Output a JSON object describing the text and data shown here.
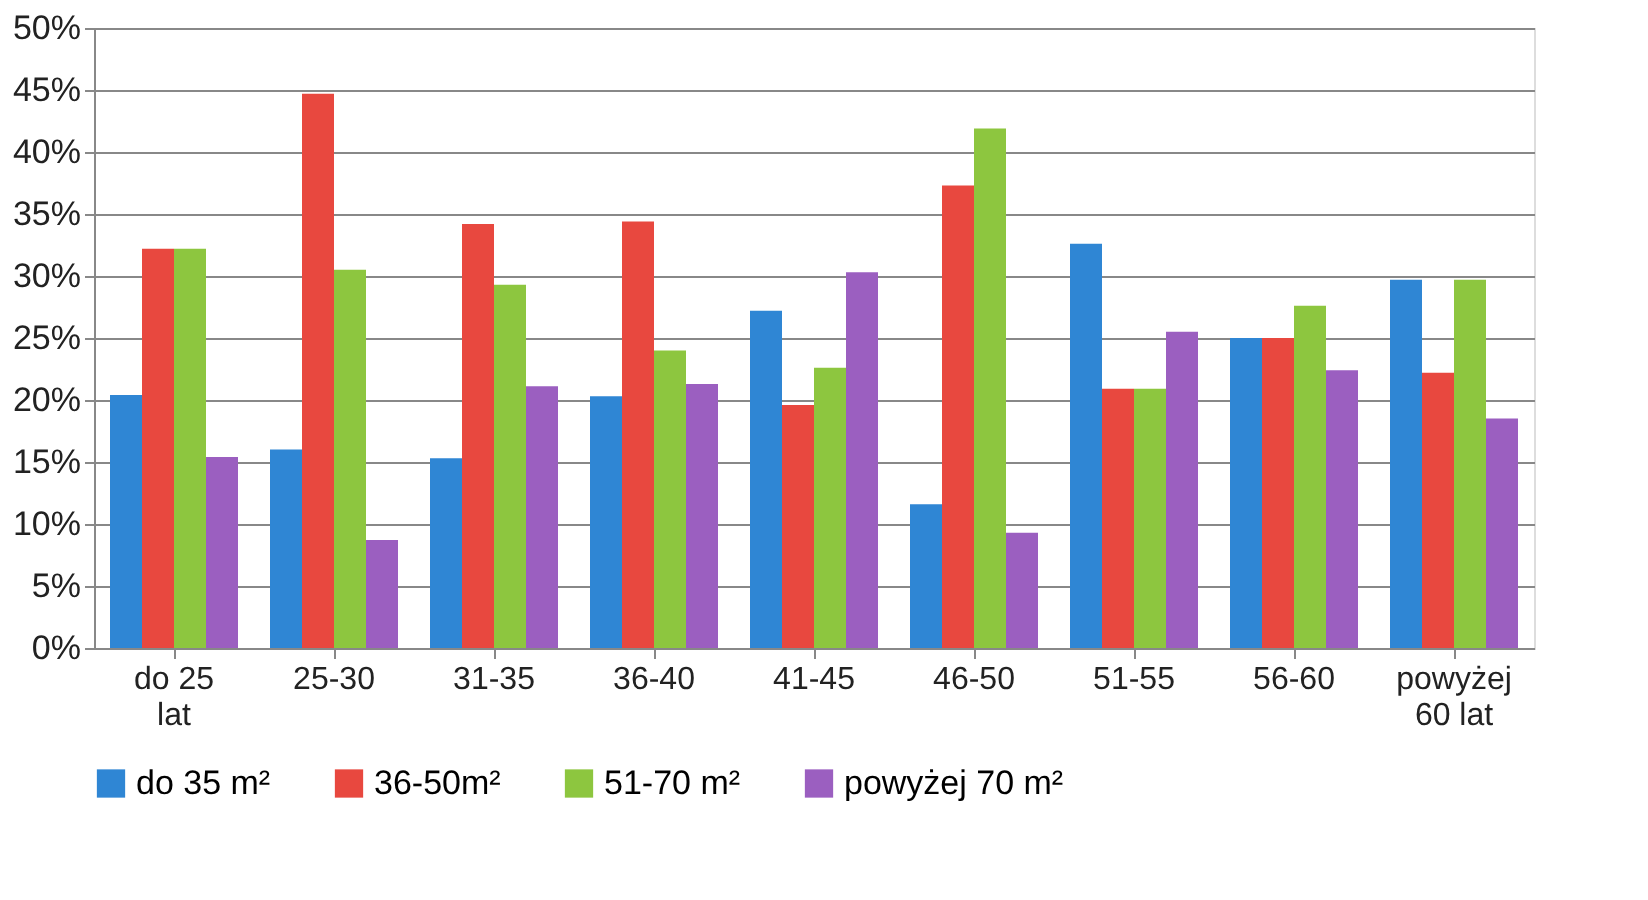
{
  "chart_data": {
    "type": "bar",
    "categories": [
      "do 25\nlat",
      "25-30",
      "31-35",
      "36-40",
      "41-45",
      "46-50",
      "51-55",
      "56-60",
      "powyżej\n60 lat"
    ],
    "series": [
      {
        "name": "do 35 m²",
        "color": "#2f86d4",
        "values": [
          20.4,
          16,
          15.3,
          20.3,
          27.2,
          11.6,
          32.6,
          25,
          29.7
        ]
      },
      {
        "name": "36-50m²",
        "color": "#e8483f",
        "values": [
          32.2,
          44.7,
          34.2,
          34.4,
          19.6,
          37.3,
          20.9,
          25,
          22.2
        ]
      },
      {
        "name": "51-70 m²",
        "color": "#8dc63f",
        "values": [
          32.2,
          30.5,
          29.3,
          24,
          22.6,
          41.9,
          20.9,
          27.6,
          29.7
        ]
      },
      {
        "name": "powyżej 70 m²",
        "color": "#9b5fc0",
        "values": [
          15.4,
          8.7,
          21.1,
          21.3,
          30.3,
          9.3,
          25.5,
          22.4,
          18.5
        ]
      }
    ],
    "ylim": [
      0,
      50
    ],
    "yticks": [
      {
        "value": 0,
        "label": "0%"
      },
      {
        "value": 5,
        "label": "5%"
      },
      {
        "value": 10,
        "label": "10%"
      },
      {
        "value": 15,
        "label": "15%"
      },
      {
        "value": 20,
        "label": "20%"
      },
      {
        "value": 25,
        "label": "25%"
      },
      {
        "value": 30,
        "label": "30%"
      },
      {
        "value": 35,
        "label": "35%"
      },
      {
        "value": 40,
        "label": "40%"
      },
      {
        "value": 45,
        "label": "45%"
      },
      {
        "value": 50,
        "label": "50%"
      }
    ],
    "grid": "y",
    "legend": "bottom"
  }
}
